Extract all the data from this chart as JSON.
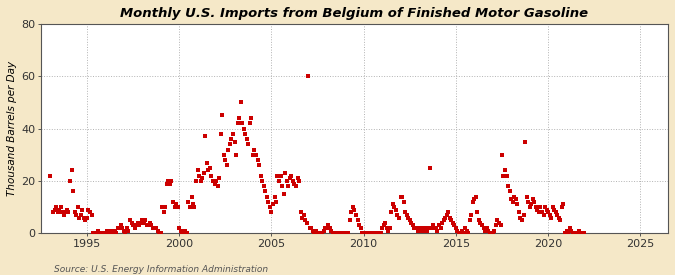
{
  "title": "Monthly U.S. Imports from Belgium of Finished Motor Gasoline",
  "ylabel": "Thousand Barrels per Day",
  "source": "Source: U.S. Energy Information Administration",
  "figure_bg": "#f5e8c8",
  "plot_bg": "#ffffff",
  "dot_color": "#cc0000",
  "grid_color": "#aaaaaa",
  "ylim": [
    0,
    80
  ],
  "yticks": [
    0,
    20,
    40,
    60,
    80
  ],
  "xlim": [
    1992.5,
    2026.5
  ],
  "xticks": [
    1995,
    2000,
    2005,
    2010,
    2015,
    2020,
    2025
  ],
  "data": [
    [
      1993.0,
      22
    ],
    [
      1993.17,
      8
    ],
    [
      1993.25,
      9
    ],
    [
      1993.33,
      10
    ],
    [
      1993.42,
      8
    ],
    [
      1993.5,
      9
    ],
    [
      1993.58,
      10
    ],
    [
      1993.67,
      8
    ],
    [
      1993.75,
      7
    ],
    [
      1993.83,
      8
    ],
    [
      1993.92,
      9
    ],
    [
      1994.0,
      8
    ],
    [
      1994.08,
      20
    ],
    [
      1994.17,
      24
    ],
    [
      1994.25,
      16
    ],
    [
      1994.33,
      8
    ],
    [
      1994.42,
      7
    ],
    [
      1994.5,
      10
    ],
    [
      1994.58,
      6
    ],
    [
      1994.67,
      7
    ],
    [
      1994.75,
      9
    ],
    [
      1994.83,
      6
    ],
    [
      1994.92,
      5
    ],
    [
      1995.0,
      6
    ],
    [
      1995.08,
      9
    ],
    [
      1995.17,
      8
    ],
    [
      1995.25,
      7
    ],
    [
      1995.33,
      0
    ],
    [
      1995.42,
      0
    ],
    [
      1995.5,
      0
    ],
    [
      1995.58,
      1
    ],
    [
      1995.67,
      0
    ],
    [
      1995.75,
      0
    ],
    [
      1995.83,
      0
    ],
    [
      1995.92,
      0
    ],
    [
      1996.0,
      0
    ],
    [
      1996.08,
      1
    ],
    [
      1996.17,
      0
    ],
    [
      1996.25,
      0
    ],
    [
      1996.33,
      1
    ],
    [
      1996.42,
      0
    ],
    [
      1996.5,
      1
    ],
    [
      1996.58,
      0
    ],
    [
      1996.67,
      2
    ],
    [
      1996.75,
      2
    ],
    [
      1996.83,
      3
    ],
    [
      1996.92,
      2
    ],
    [
      1997.0,
      1
    ],
    [
      1997.08,
      0
    ],
    [
      1997.17,
      2
    ],
    [
      1997.25,
      1
    ],
    [
      1997.33,
      5
    ],
    [
      1997.42,
      4
    ],
    [
      1997.5,
      3
    ],
    [
      1997.58,
      2
    ],
    [
      1997.67,
      3
    ],
    [
      1997.75,
      4
    ],
    [
      1997.83,
      3
    ],
    [
      1997.92,
      4
    ],
    [
      1998.0,
      5
    ],
    [
      1998.08,
      4
    ],
    [
      1998.17,
      5
    ],
    [
      1998.25,
      3
    ],
    [
      1998.33,
      3
    ],
    [
      1998.42,
      4
    ],
    [
      1998.5,
      3
    ],
    [
      1998.58,
      2
    ],
    [
      1998.67,
      2
    ],
    [
      1998.75,
      2
    ],
    [
      1998.83,
      1
    ],
    [
      1998.92,
      0
    ],
    [
      1999.0,
      0
    ],
    [
      1999.08,
      10
    ],
    [
      1999.17,
      8
    ],
    [
      1999.25,
      10
    ],
    [
      1999.33,
      19
    ],
    [
      1999.42,
      20
    ],
    [
      1999.5,
      19
    ],
    [
      1999.58,
      20
    ],
    [
      1999.67,
      12
    ],
    [
      1999.75,
      10
    ],
    [
      1999.83,
      11
    ],
    [
      1999.92,
      10
    ],
    [
      2000.0,
      2
    ],
    [
      2000.08,
      1
    ],
    [
      2000.17,
      0
    ],
    [
      2000.25,
      0
    ],
    [
      2000.33,
      1
    ],
    [
      2000.42,
      0
    ],
    [
      2000.5,
      12
    ],
    [
      2000.58,
      10
    ],
    [
      2000.67,
      14
    ],
    [
      2000.75,
      11
    ],
    [
      2000.83,
      10
    ],
    [
      2000.92,
      20
    ],
    [
      2001.0,
      24
    ],
    [
      2001.08,
      22
    ],
    [
      2001.17,
      20
    ],
    [
      2001.25,
      21
    ],
    [
      2001.33,
      23
    ],
    [
      2001.42,
      37
    ],
    [
      2001.5,
      27
    ],
    [
      2001.58,
      24
    ],
    [
      2001.67,
      25
    ],
    [
      2001.75,
      22
    ],
    [
      2001.83,
      20
    ],
    [
      2001.92,
      19
    ],
    [
      2002.0,
      20
    ],
    [
      2002.08,
      18
    ],
    [
      2002.17,
      21
    ],
    [
      2002.25,
      38
    ],
    [
      2002.33,
      45
    ],
    [
      2002.42,
      30
    ],
    [
      2002.5,
      28
    ],
    [
      2002.58,
      26
    ],
    [
      2002.67,
      32
    ],
    [
      2002.75,
      34
    ],
    [
      2002.83,
      36
    ],
    [
      2002.92,
      38
    ],
    [
      2003.0,
      35
    ],
    [
      2003.08,
      30
    ],
    [
      2003.17,
      42
    ],
    [
      2003.25,
      44
    ],
    [
      2003.33,
      50
    ],
    [
      2003.42,
      42
    ],
    [
      2003.5,
      40
    ],
    [
      2003.58,
      38
    ],
    [
      2003.67,
      36
    ],
    [
      2003.75,
      34
    ],
    [
      2003.83,
      42
    ],
    [
      2003.92,
      44
    ],
    [
      2004.0,
      30
    ],
    [
      2004.08,
      32
    ],
    [
      2004.17,
      30
    ],
    [
      2004.25,
      28
    ],
    [
      2004.33,
      26
    ],
    [
      2004.42,
      22
    ],
    [
      2004.5,
      20
    ],
    [
      2004.58,
      18
    ],
    [
      2004.67,
      16
    ],
    [
      2004.75,
      14
    ],
    [
      2004.83,
      12
    ],
    [
      2004.92,
      10
    ],
    [
      2005.0,
      8
    ],
    [
      2005.08,
      11
    ],
    [
      2005.17,
      14
    ],
    [
      2005.25,
      12
    ],
    [
      2005.33,
      22
    ],
    [
      2005.42,
      20
    ],
    [
      2005.5,
      22
    ],
    [
      2005.58,
      18
    ],
    [
      2005.67,
      15
    ],
    [
      2005.75,
      23
    ],
    [
      2005.83,
      20
    ],
    [
      2005.92,
      18
    ],
    [
      2006.0,
      21
    ],
    [
      2006.08,
      22
    ],
    [
      2006.17,
      20
    ],
    [
      2006.25,
      19
    ],
    [
      2006.33,
      18
    ],
    [
      2006.42,
      21
    ],
    [
      2006.5,
      20
    ],
    [
      2006.58,
      8
    ],
    [
      2006.67,
      6
    ],
    [
      2006.75,
      7
    ],
    [
      2006.83,
      5
    ],
    [
      2006.92,
      4
    ],
    [
      2007.0,
      60
    ],
    [
      2007.08,
      2
    ],
    [
      2007.17,
      2
    ],
    [
      2007.25,
      1
    ],
    [
      2007.33,
      0
    ],
    [
      2007.42,
      1
    ],
    [
      2007.5,
      0
    ],
    [
      2007.58,
      0
    ],
    [
      2007.67,
      0
    ],
    [
      2007.75,
      0
    ],
    [
      2007.83,
      1
    ],
    [
      2007.92,
      2
    ],
    [
      2008.0,
      2
    ],
    [
      2008.08,
      3
    ],
    [
      2008.17,
      2
    ],
    [
      2008.25,
      1
    ],
    [
      2008.33,
      0
    ],
    [
      2008.42,
      0
    ],
    [
      2008.5,
      0
    ],
    [
      2008.58,
      0
    ],
    [
      2008.67,
      0
    ],
    [
      2008.75,
      0
    ],
    [
      2008.83,
      0
    ],
    [
      2008.92,
      0
    ],
    [
      2009.0,
      0
    ],
    [
      2009.08,
      0
    ],
    [
      2009.17,
      0
    ],
    [
      2009.25,
      5
    ],
    [
      2009.33,
      8
    ],
    [
      2009.42,
      10
    ],
    [
      2009.5,
      9
    ],
    [
      2009.58,
      7
    ],
    [
      2009.67,
      5
    ],
    [
      2009.75,
      3
    ],
    [
      2009.83,
      2
    ],
    [
      2009.92,
      0
    ],
    [
      2010.0,
      0
    ],
    [
      2010.08,
      0
    ],
    [
      2010.17,
      0
    ],
    [
      2010.25,
      0
    ],
    [
      2010.33,
      0
    ],
    [
      2010.42,
      0
    ],
    [
      2010.5,
      0
    ],
    [
      2010.58,
      0
    ],
    [
      2010.67,
      0
    ],
    [
      2010.75,
      0
    ],
    [
      2010.83,
      0
    ],
    [
      2010.92,
      0
    ],
    [
      2011.0,
      2
    ],
    [
      2011.08,
      3
    ],
    [
      2011.17,
      4
    ],
    [
      2011.25,
      2
    ],
    [
      2011.33,
      1
    ],
    [
      2011.42,
      2
    ],
    [
      2011.5,
      8
    ],
    [
      2011.58,
      11
    ],
    [
      2011.67,
      10
    ],
    [
      2011.75,
      9
    ],
    [
      2011.83,
      7
    ],
    [
      2011.92,
      6
    ],
    [
      2012.0,
      14
    ],
    [
      2012.08,
      14
    ],
    [
      2012.17,
      12
    ],
    [
      2012.25,
      8
    ],
    [
      2012.33,
      7
    ],
    [
      2012.42,
      6
    ],
    [
      2012.5,
      5
    ],
    [
      2012.58,
      4
    ],
    [
      2012.67,
      3
    ],
    [
      2012.75,
      2
    ],
    [
      2012.83,
      2
    ],
    [
      2012.92,
      1
    ],
    [
      2013.0,
      2
    ],
    [
      2013.08,
      1
    ],
    [
      2013.17,
      2
    ],
    [
      2013.25,
      1
    ],
    [
      2013.33,
      2
    ],
    [
      2013.42,
      1
    ],
    [
      2013.5,
      2
    ],
    [
      2013.58,
      25
    ],
    [
      2013.67,
      2
    ],
    [
      2013.75,
      3
    ],
    [
      2013.83,
      2
    ],
    [
      2013.92,
      2
    ],
    [
      2014.0,
      1
    ],
    [
      2014.08,
      3
    ],
    [
      2014.17,
      2
    ],
    [
      2014.25,
      4
    ],
    [
      2014.33,
      5
    ],
    [
      2014.42,
      6
    ],
    [
      2014.5,
      7
    ],
    [
      2014.58,
      8
    ],
    [
      2014.67,
      6
    ],
    [
      2014.75,
      5
    ],
    [
      2014.83,
      4
    ],
    [
      2014.92,
      3
    ],
    [
      2015.0,
      2
    ],
    [
      2015.08,
      1
    ],
    [
      2015.17,
      0
    ],
    [
      2015.25,
      0
    ],
    [
      2015.33,
      1
    ],
    [
      2015.42,
      0
    ],
    [
      2015.5,
      2
    ],
    [
      2015.58,
      1
    ],
    [
      2015.67,
      0
    ],
    [
      2015.75,
      5
    ],
    [
      2015.83,
      7
    ],
    [
      2015.92,
      12
    ],
    [
      2016.0,
      13
    ],
    [
      2016.08,
      14
    ],
    [
      2016.17,
      8
    ],
    [
      2016.25,
      5
    ],
    [
      2016.33,
      4
    ],
    [
      2016.42,
      3
    ],
    [
      2016.5,
      2
    ],
    [
      2016.58,
      1
    ],
    [
      2016.67,
      2
    ],
    [
      2016.75,
      1
    ],
    [
      2016.83,
      0
    ],
    [
      2016.92,
      0
    ],
    [
      2017.0,
      0
    ],
    [
      2017.08,
      1
    ],
    [
      2017.17,
      3
    ],
    [
      2017.25,
      5
    ],
    [
      2017.33,
      4
    ],
    [
      2017.42,
      3
    ],
    [
      2017.5,
      30
    ],
    [
      2017.58,
      22
    ],
    [
      2017.67,
      24
    ],
    [
      2017.75,
      22
    ],
    [
      2017.83,
      18
    ],
    [
      2017.92,
      16
    ],
    [
      2018.0,
      13
    ],
    [
      2018.08,
      12
    ],
    [
      2018.17,
      14
    ],
    [
      2018.25,
      13
    ],
    [
      2018.33,
      11
    ],
    [
      2018.42,
      8
    ],
    [
      2018.5,
      6
    ],
    [
      2018.58,
      5
    ],
    [
      2018.67,
      7
    ],
    [
      2018.75,
      35
    ],
    [
      2018.83,
      14
    ],
    [
      2018.92,
      12
    ],
    [
      2019.0,
      10
    ],
    [
      2019.08,
      11
    ],
    [
      2019.17,
      13
    ],
    [
      2019.25,
      12
    ],
    [
      2019.33,
      10
    ],
    [
      2019.42,
      9
    ],
    [
      2019.5,
      8
    ],
    [
      2019.58,
      10
    ],
    [
      2019.67,
      8
    ],
    [
      2019.75,
      7
    ],
    [
      2019.83,
      10
    ],
    [
      2019.92,
      9
    ],
    [
      2020.0,
      8
    ],
    [
      2020.08,
      7
    ],
    [
      2020.17,
      6
    ],
    [
      2020.25,
      10
    ],
    [
      2020.33,
      9
    ],
    [
      2020.42,
      8
    ],
    [
      2020.5,
      7
    ],
    [
      2020.58,
      6
    ],
    [
      2020.67,
      5
    ],
    [
      2020.75,
      10
    ],
    [
      2020.83,
      11
    ],
    [
      2020.92,
      0
    ],
    [
      2021.0,
      1
    ],
    [
      2021.08,
      0
    ],
    [
      2021.17,
      2
    ],
    [
      2021.25,
      1
    ],
    [
      2021.33,
      0
    ],
    [
      2021.42,
      0
    ],
    [
      2021.5,
      0
    ],
    [
      2021.58,
      0
    ],
    [
      2021.67,
      1
    ],
    [
      2021.75,
      0
    ],
    [
      2021.83,
      0
    ],
    [
      2021.92,
      0
    ]
  ]
}
